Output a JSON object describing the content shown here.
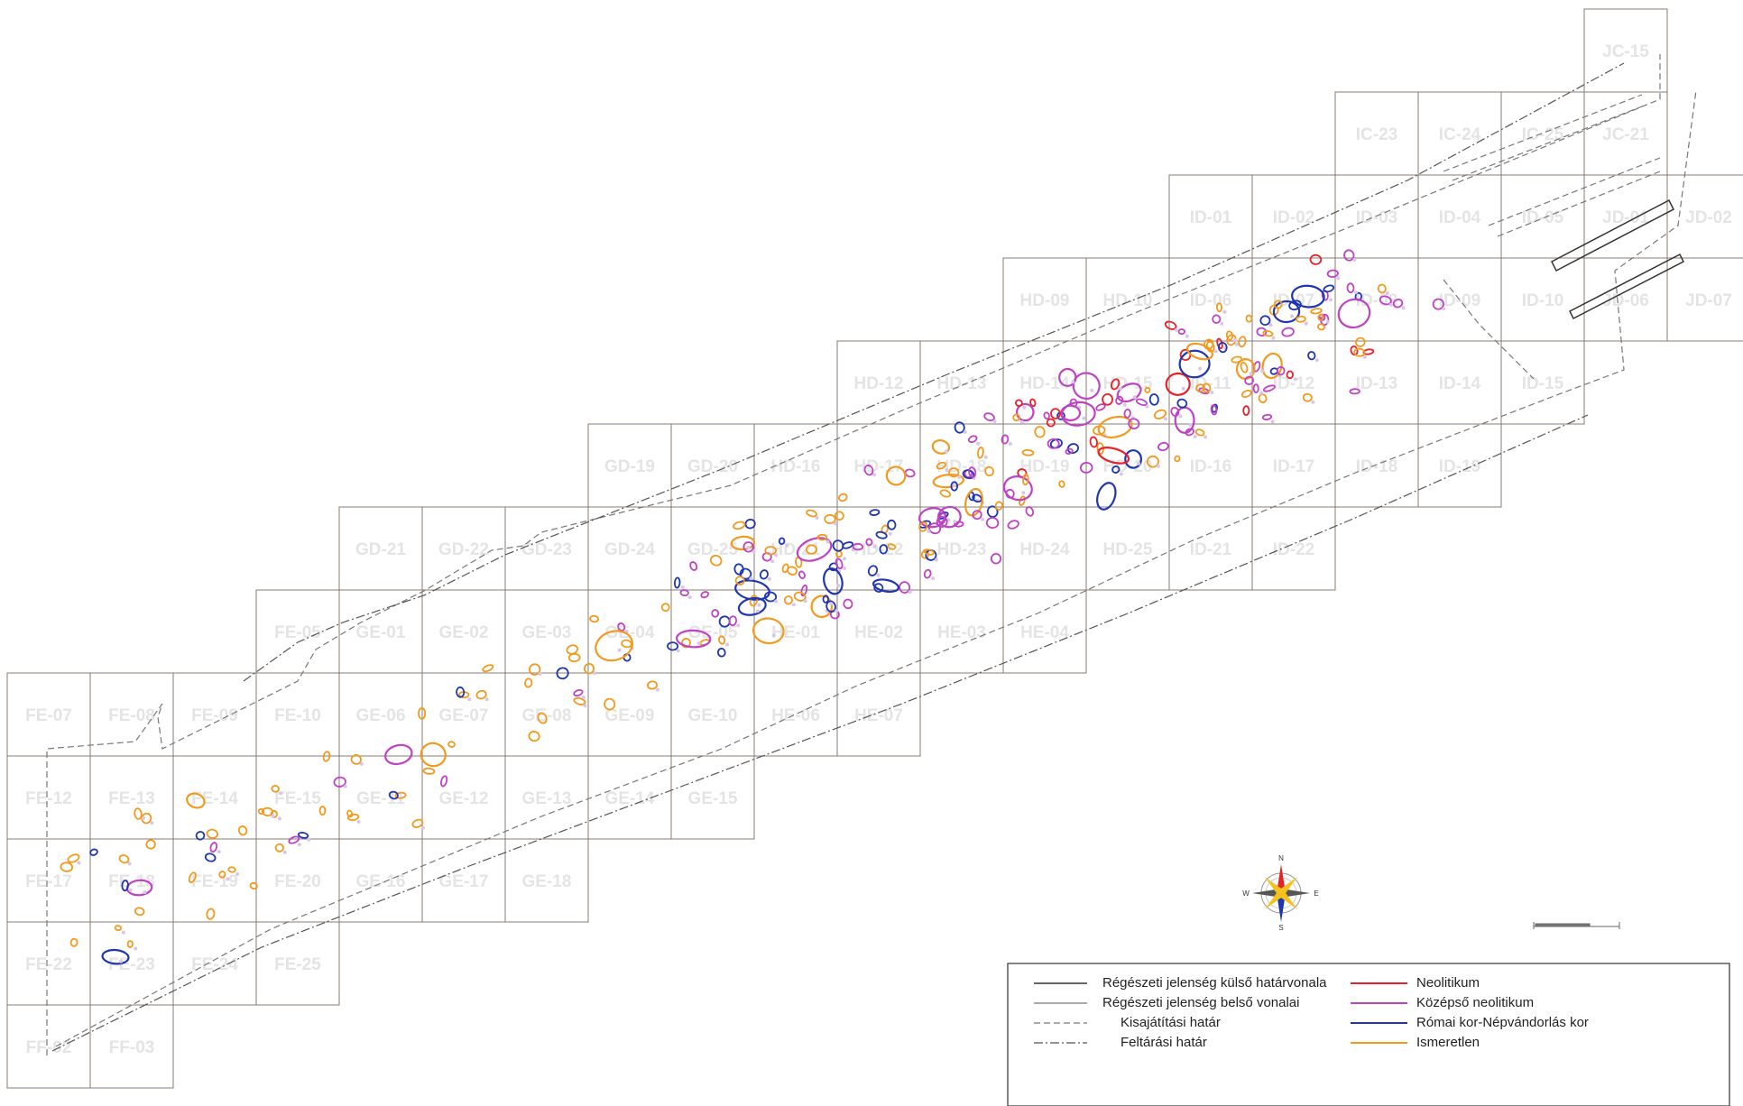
{
  "colors": {
    "neolithic": "#e8202a",
    "middle_neolithic": "#c042c4",
    "roman": "#1f36b0",
    "unknown": "#f39a1e",
    "grid": "#8a7b72",
    "boundary": "#555555",
    "grid_label": "#e4e4e4"
  },
  "grid": {
    "cells": [
      {
        "label": "JC-15",
        "col": 19,
        "row": 0
      },
      {
        "label": "IC-23",
        "col": 16,
        "row": 1
      },
      {
        "label": "IC-24",
        "col": 17,
        "row": 1
      },
      {
        "label": "IC-25",
        "col": 18,
        "row": 1
      },
      {
        "label": "JC-21",
        "col": 19,
        "row": 1
      },
      {
        "label": "ID-01",
        "col": 14,
        "row": 2
      },
      {
        "label": "ID-02",
        "col": 15,
        "row": 2
      },
      {
        "label": "ID-03",
        "col": 16,
        "row": 2
      },
      {
        "label": "ID-04",
        "col": 17,
        "row": 2
      },
      {
        "label": "ID-05",
        "col": 18,
        "row": 2
      },
      {
        "label": "JD-01",
        "col": 19,
        "row": 2
      },
      {
        "label": "JD-02",
        "col": 20,
        "row": 2
      },
      {
        "label": "HD-09",
        "col": 12,
        "row": 3
      },
      {
        "label": "HD-10",
        "col": 13,
        "row": 3
      },
      {
        "label": "ID-06",
        "col": 14,
        "row": 3
      },
      {
        "label": "ID-07",
        "col": 15,
        "row": 3
      },
      {
        "label": "ID-08",
        "col": 16,
        "row": 3
      },
      {
        "label": "ID-09",
        "col": 17,
        "row": 3
      },
      {
        "label": "ID-10",
        "col": 18,
        "row": 3
      },
      {
        "label": "JD-06",
        "col": 19,
        "row": 3
      },
      {
        "label": "JD-07",
        "col": 20,
        "row": 3
      },
      {
        "label": "HD-12",
        "col": 10,
        "row": 4
      },
      {
        "label": "HD-13",
        "col": 11,
        "row": 4
      },
      {
        "label": "HD-14",
        "col": 12,
        "row": 4
      },
      {
        "label": "HD-15",
        "col": 13,
        "row": 4
      },
      {
        "label": "ID-11",
        "col": 14,
        "row": 4
      },
      {
        "label": "ID-12",
        "col": 15,
        "row": 4
      },
      {
        "label": "ID-13",
        "col": 16,
        "row": 4
      },
      {
        "label": "ID-14",
        "col": 17,
        "row": 4
      },
      {
        "label": "ID-15",
        "col": 18,
        "row": 4
      },
      {
        "label": "GD-19",
        "col": 7,
        "row": 5
      },
      {
        "label": "GD-20",
        "col": 8,
        "row": 5
      },
      {
        "label": "HD-16",
        "col": 9,
        "row": 5
      },
      {
        "label": "HD-17",
        "col": 10,
        "row": 5
      },
      {
        "label": "HD-18",
        "col": 11,
        "row": 5
      },
      {
        "label": "HD-19",
        "col": 12,
        "row": 5
      },
      {
        "label": "HD-20",
        "col": 13,
        "row": 5
      },
      {
        "label": "ID-16",
        "col": 14,
        "row": 5
      },
      {
        "label": "ID-17",
        "col": 15,
        "row": 5
      },
      {
        "label": "ID-18",
        "col": 16,
        "row": 5
      },
      {
        "label": "ID-19",
        "col": 17,
        "row": 5
      },
      {
        "label": "GD-21",
        "col": 4,
        "row": 6
      },
      {
        "label": "GD-22",
        "col": 5,
        "row": 6
      },
      {
        "label": "GD-23",
        "col": 6,
        "row": 6
      },
      {
        "label": "GD-24",
        "col": 7,
        "row": 6
      },
      {
        "label": "GD-25",
        "col": 8,
        "row": 6
      },
      {
        "label": "HD-21",
        "col": 9,
        "row": 6
      },
      {
        "label": "HD-22",
        "col": 10,
        "row": 6
      },
      {
        "label": "HD-23",
        "col": 11,
        "row": 6
      },
      {
        "label": "HD-24",
        "col": 12,
        "row": 6
      },
      {
        "label": "HD-25",
        "col": 13,
        "row": 6
      },
      {
        "label": "ID-21",
        "col": 14,
        "row": 6
      },
      {
        "label": "ID-22",
        "col": 15,
        "row": 6
      },
      {
        "label": "FE-05",
        "col": 3,
        "row": 7
      },
      {
        "label": "GE-01",
        "col": 4,
        "row": 7
      },
      {
        "label": "GE-02",
        "col": 5,
        "row": 7
      },
      {
        "label": "GE-03",
        "col": 6,
        "row": 7
      },
      {
        "label": "GE-04",
        "col": 7,
        "row": 7
      },
      {
        "label": "GE-05",
        "col": 8,
        "row": 7
      },
      {
        "label": "HE-01",
        "col": 9,
        "row": 7
      },
      {
        "label": "HE-02",
        "col": 10,
        "row": 7
      },
      {
        "label": "HE-03",
        "col": 11,
        "row": 7
      },
      {
        "label": "HE-04",
        "col": 12,
        "row": 7
      },
      {
        "label": "FE-07",
        "col": 0,
        "row": 8
      },
      {
        "label": "FE-08",
        "col": 1,
        "row": 8
      },
      {
        "label": "FE-09",
        "col": 2,
        "row": 8
      },
      {
        "label": "FE-10",
        "col": 3,
        "row": 8
      },
      {
        "label": "GE-06",
        "col": 4,
        "row": 8
      },
      {
        "label": "GE-07",
        "col": 5,
        "row": 8
      },
      {
        "label": "GE-08",
        "col": 6,
        "row": 8
      },
      {
        "label": "GE-09",
        "col": 7,
        "row": 8
      },
      {
        "label": "GE-10",
        "col": 8,
        "row": 8
      },
      {
        "label": "HE-06",
        "col": 9,
        "row": 8
      },
      {
        "label": "HE-07",
        "col": 10,
        "row": 8
      },
      {
        "label": "FE-12",
        "col": 0,
        "row": 9
      },
      {
        "label": "FE-13",
        "col": 1,
        "row": 9
      },
      {
        "label": "FE-14",
        "col": 2,
        "row": 9
      },
      {
        "label": "FE-15",
        "col": 3,
        "row": 9
      },
      {
        "label": "GE-11",
        "col": 4,
        "row": 9
      },
      {
        "label": "GE-12",
        "col": 5,
        "row": 9
      },
      {
        "label": "GE-13",
        "col": 6,
        "row": 9
      },
      {
        "label": "GE-14",
        "col": 7,
        "row": 9
      },
      {
        "label": "GE-15",
        "col": 8,
        "row": 9
      },
      {
        "label": "FE-17",
        "col": 0,
        "row": 10
      },
      {
        "label": "FE-18",
        "col": 1,
        "row": 10
      },
      {
        "label": "FE-19",
        "col": 2,
        "row": 10
      },
      {
        "label": "FE-20",
        "col": 3,
        "row": 10
      },
      {
        "label": "GE-16",
        "col": 4,
        "row": 10
      },
      {
        "label": "GE-17",
        "col": 5,
        "row": 10
      },
      {
        "label": "GE-18",
        "col": 6,
        "row": 10
      },
      {
        "label": "FE-22",
        "col": 0,
        "row": 11
      },
      {
        "label": "FE-23",
        "col": 1,
        "row": 11
      },
      {
        "label": "FE-24",
        "col": 2,
        "row": 11
      },
      {
        "label": "FE-25",
        "col": 3,
        "row": 11
      },
      {
        "label": "FF-02",
        "col": 0,
        "row": 12
      },
      {
        "label": "FF-03",
        "col": 1,
        "row": 12
      }
    ]
  },
  "legend": {
    "lines": [
      {
        "label": "Régészeti jelenség külső határvonala",
        "style": "solid-dark"
      },
      {
        "label": "Régészeti jelenség belső vonalai",
        "style": "solid-thin"
      },
      {
        "label": "Kisajátítási határ",
        "style": "dashed"
      },
      {
        "label": "Feltárási határ",
        "style": "dashdot"
      }
    ],
    "periods": [
      {
        "label": "Neolitikum",
        "color": "#e8202a"
      },
      {
        "label": "Középső neolitikum",
        "color": "#c042c4"
      },
      {
        "label": "Római kor-Népvándorlás kor",
        "color": "#1f36b0"
      },
      {
        "label": "Ismeretlen",
        "color": "#f39a1e"
      }
    ]
  },
  "compass": {
    "n": "N",
    "s": "S",
    "e": "E",
    "w": "W"
  }
}
